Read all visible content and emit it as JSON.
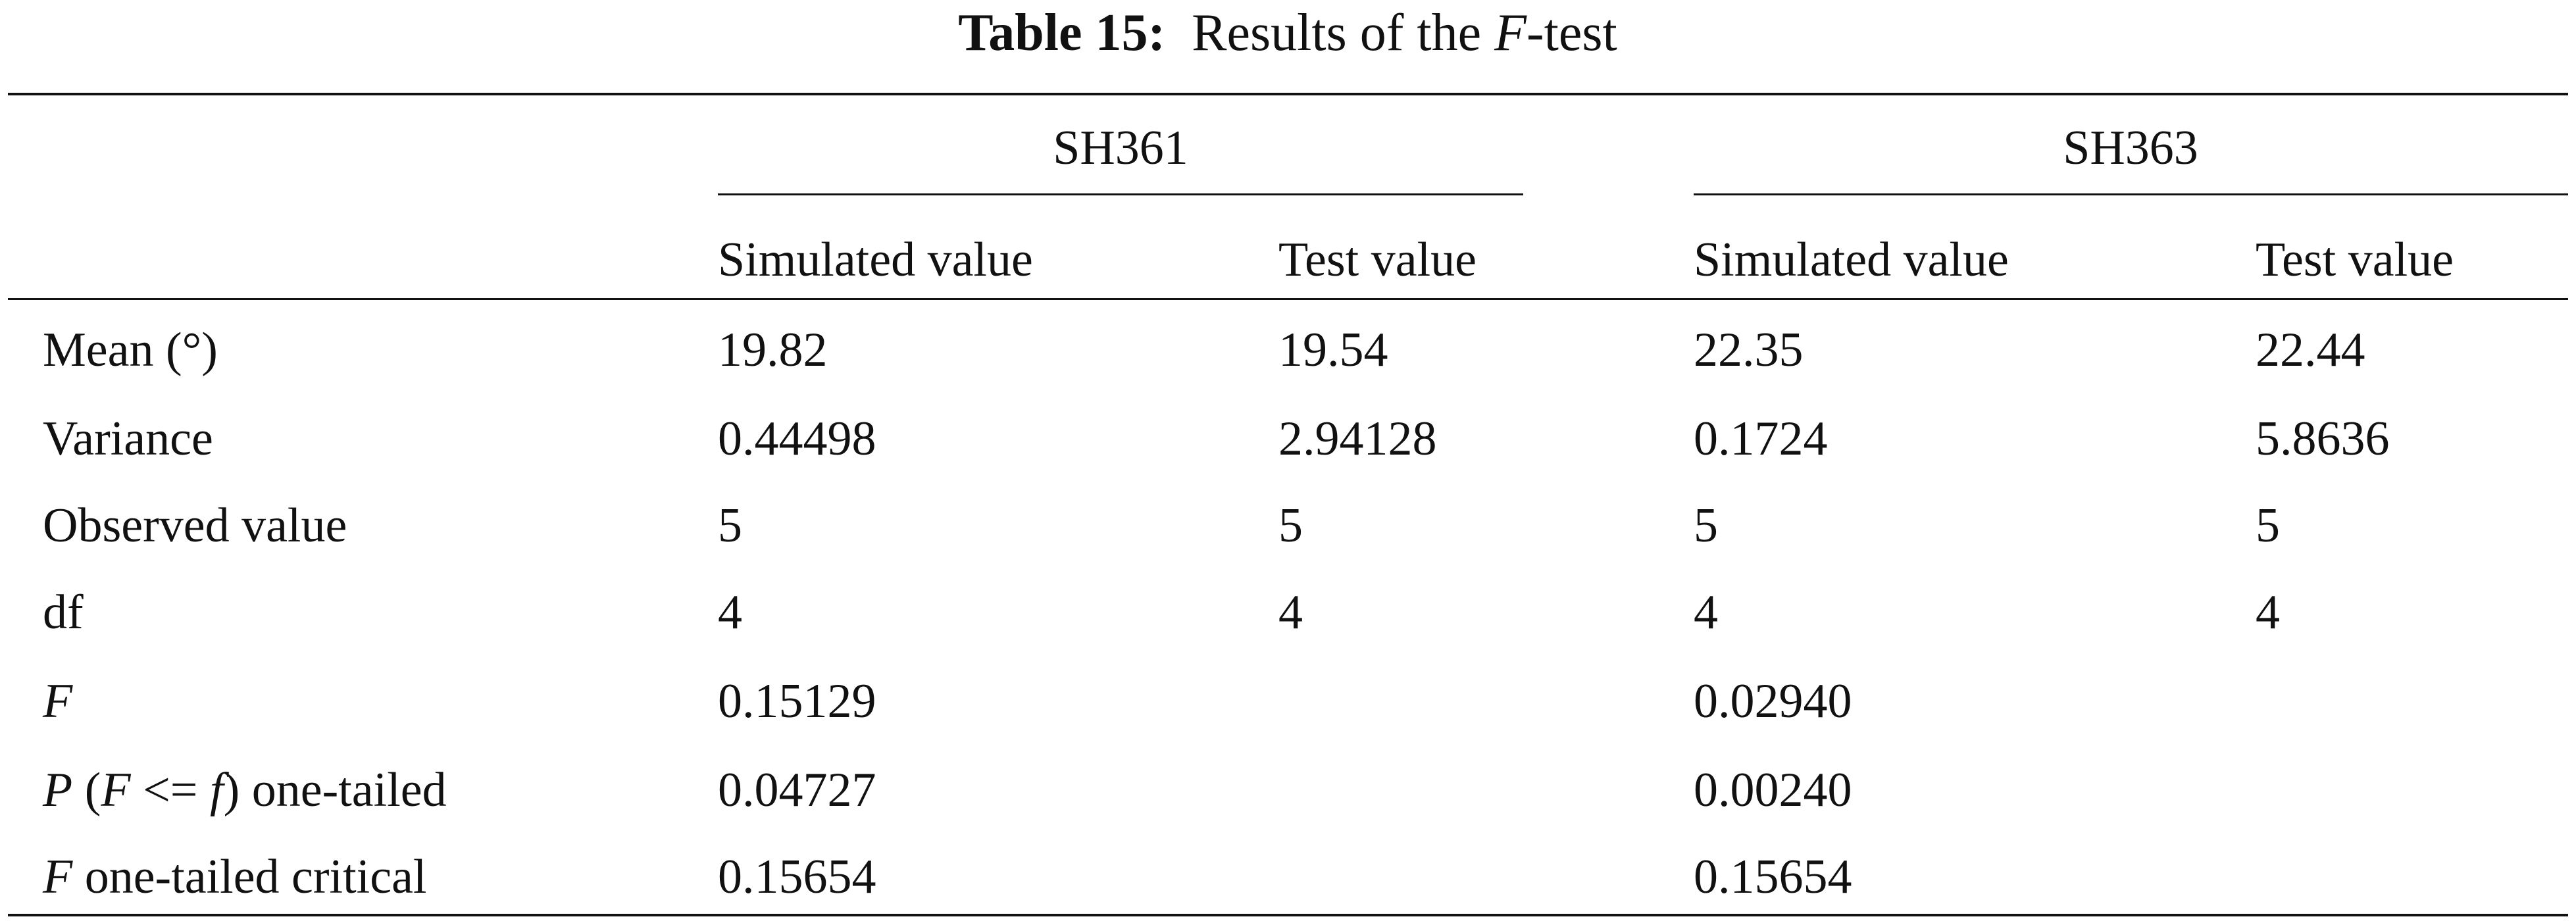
{
  "table": {
    "title": {
      "label": "Table 15:",
      "text": [
        {
          "text": "Results of the ",
          "italic": false
        },
        {
          "text": "F",
          "italic": true
        },
        {
          "text": "-test",
          "italic": false
        }
      ]
    },
    "groups": [
      "SH361",
      "SH363"
    ],
    "columns": [
      "Simulated value",
      "Test value",
      "Simulated value",
      "Test value"
    ],
    "rows": [
      {
        "label": [
          {
            "text": "Mean (°)",
            "italic": false
          }
        ],
        "cells": [
          "19.82",
          "19.54",
          "22.35",
          "22.44"
        ]
      },
      {
        "label": [
          {
            "text": "Variance",
            "italic": false
          }
        ],
        "cells": [
          "0.44498",
          "2.94128",
          "0.1724",
          "5.8636"
        ]
      },
      {
        "label": [
          {
            "text": "Observed value",
            "italic": false
          }
        ],
        "cells": [
          "5",
          "5",
          "5",
          "5"
        ]
      },
      {
        "label": [
          {
            "text": "df",
            "italic": false
          }
        ],
        "cells": [
          "4",
          "4",
          "4",
          "4"
        ]
      },
      {
        "label": [
          {
            "text": "F",
            "italic": true
          }
        ],
        "cells": [
          "0.15129",
          null,
          "0.02940",
          null
        ]
      },
      {
        "label": [
          {
            "text": "P",
            "italic": true
          },
          {
            "text": " (",
            "italic": false
          },
          {
            "text": "F",
            "italic": true
          },
          {
            "text": " <= ",
            "italic": false
          },
          {
            "text": "f",
            "italic": true
          },
          {
            "text": ") one-tailed",
            "italic": false
          }
        ],
        "cells": [
          "0.04727",
          null,
          "0.00240",
          null
        ]
      },
      {
        "label": [
          {
            "text": "F",
            "italic": true
          },
          {
            "text": " one-tailed critical",
            "italic": false
          }
        ],
        "cells": [
          "0.15654",
          null,
          "0.15654",
          null
        ]
      }
    ]
  }
}
